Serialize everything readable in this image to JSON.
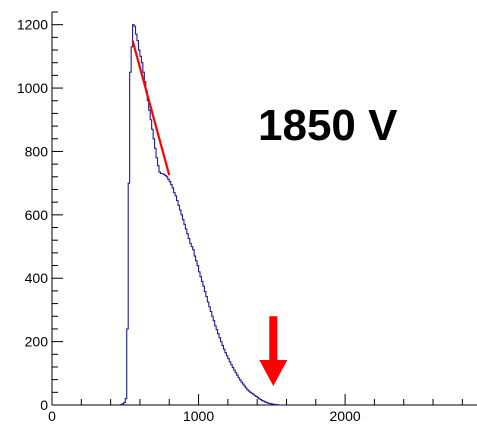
{
  "chart_data": {
    "type": "histogram",
    "title": "",
    "xlabel": "",
    "ylabel": "",
    "xlim": [
      0,
      2900
    ],
    "ylim": [
      0,
      1240
    ],
    "x_ticks": [
      0,
      1000,
      2000
    ],
    "y_ticks": [
      0,
      200,
      400,
      600,
      800,
      1000,
      1200
    ],
    "x_tick_labels": [
      "0",
      "1000",
      "2000"
    ],
    "y_tick_labels": [
      "0",
      "200",
      "400",
      "600",
      "800",
      "1000",
      "1200"
    ],
    "annotation": "1850 V",
    "histogram_color": "#1a1a9e",
    "fit_color": "#ff0000",
    "arrow_color": "#ff0000",
    "histogram": {
      "bin_width": 10,
      "bins_start": 470,
      "counts": [
        2,
        4,
        8,
        20,
        240,
        700,
        1050,
        1130,
        1200,
        1195,
        1170,
        1150,
        1120,
        1100,
        1080,
        1050,
        1020,
        990,
        960,
        930,
        900,
        870,
        840,
        810,
        780,
        755,
        735,
        730,
        730,
        728,
        724,
        720,
        712,
        705,
        695,
        685,
        670,
        660,
        645,
        630,
        615,
        600,
        585,
        570,
        555,
        540,
        525,
        510,
        500,
        490,
        470,
        455,
        440,
        420,
        405,
        390,
        375,
        358,
        342,
        325,
        310,
        295,
        280,
        266,
        250,
        238,
        225,
        212,
        200,
        188,
        176,
        165,
        155,
        146,
        136,
        127,
        118,
        110,
        102,
        94,
        86,
        79,
        72,
        66,
        60,
        54,
        48,
        44,
        40,
        37,
        34,
        30,
        27,
        24,
        20,
        17,
        14,
        12,
        10,
        8,
        6,
        5,
        4,
        3,
        2,
        2,
        1,
        1,
        0
      ]
    },
    "fit_line": {
      "x": [
        550,
        800
      ],
      "y": [
        1150,
        725
      ]
    },
    "arrow": {
      "x": 1510,
      "y_from": 280,
      "y_to": 60
    }
  }
}
